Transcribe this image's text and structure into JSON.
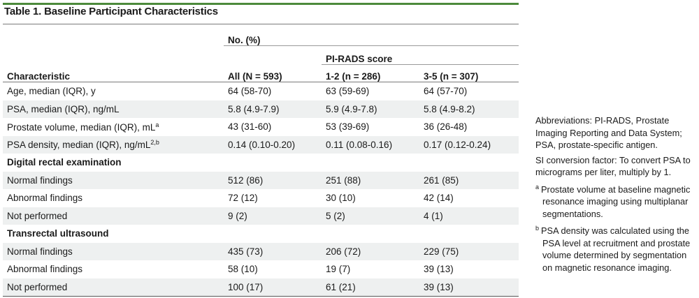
{
  "title": "Table 1. Baseline Participant Characteristics",
  "header": {
    "no_pct": "No. (%)",
    "pirads": "PI-RADS score",
    "characteristic": "Characteristic",
    "all": "All (N = 593)",
    "col12": "1-2 (n = 286)",
    "col35": "3-5 (n = 307)"
  },
  "rows": [
    {
      "label": "Age, median (IQR), y",
      "sup": "",
      "all": "64 (58-70)",
      "p12": "63 (59-69)",
      "p35": "64 (57-70)"
    },
    {
      "label": "PSA, median (IQR), ng/mL",
      "sup": "",
      "all": "5.8 (4.9-7.9)",
      "p12": "5.9 (4.9-7.8)",
      "p35": "5.8 (4.9-8.2)"
    },
    {
      "label": "Prostate volume, median (IQR), mL",
      "sup": "a",
      "all": "43 (31-60)",
      "p12": "53 (39-69)",
      "p35": "36 (26-48)"
    },
    {
      "label": "PSA density, median (IQR), ng/mL",
      "sup": "2,b",
      "all": "0.14 (0.10-0.20)",
      "p12": "0.11 (0.08-0.16)",
      "p35": "0.17 (0.12-0.24)"
    },
    {
      "section": "Digital rectal examination"
    },
    {
      "label": "Normal findings",
      "all": "512 (86)",
      "p12": "251 (88)",
      "p35": "261 (85)"
    },
    {
      "label": "Abnormal findings",
      "all": "72 (12)",
      "p12": "30 (10)",
      "p35": "42 (14)"
    },
    {
      "label": "Not performed",
      "all": "9 (2)",
      "p12": "5 (2)",
      "p35": "4 (1)"
    },
    {
      "section": "Transrectal ultrasound"
    },
    {
      "label": "Normal findings",
      "all": "435 (73)",
      "p12": "206 (72)",
      "p35": "229 (75)"
    },
    {
      "label": "Abnormal findings",
      "all": "58 (10)",
      "p12": "19 (7)",
      "p35": "39 (13)"
    },
    {
      "label": "Not performed",
      "all": "100 (17)",
      "p12": "61 (21)",
      "p35": "39 (13)"
    }
  ],
  "notes": {
    "abbreviations": "Abbreviations: PI-RADS, Prostate Imaging Reporting and Data System; PSA, prostate-specific antigen.",
    "si": "SI conversion factor: To convert PSA to micrograms per liter, multiply by 1.",
    "fn_a_mark": "a",
    "fn_a": "Prostate volume at baseline magnetic resonance imaging using multiplanar segmentations.",
    "fn_b_mark": "b",
    "fn_b": "PSA density was calculated using the PSA level at recruitment and prostate volume determined by segmentation on magnetic resonance imaging."
  },
  "colors": {
    "accent": "#4c8a3b",
    "row_shade": "#eef0f0"
  }
}
